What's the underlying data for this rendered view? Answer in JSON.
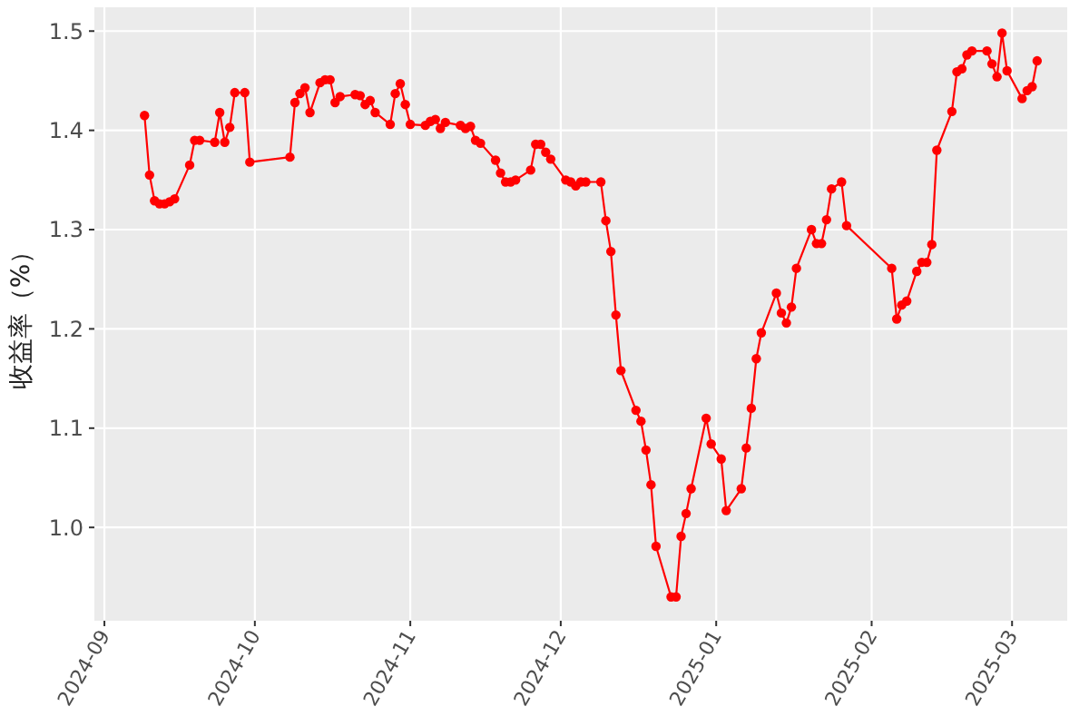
{
  "chart_data": {
    "type": "line",
    "ylabel": "收益率（%）",
    "marker": "circle",
    "line_style": "solid",
    "grid": true,
    "xlim": [
      "2024-08-30",
      "2025-03-12"
    ],
    "xticks": [
      {
        "value": "2024-09-01",
        "label": "2024-09"
      },
      {
        "value": "2024-10-01",
        "label": "2024-10"
      },
      {
        "value": "2024-11-01",
        "label": "2024-11"
      },
      {
        "value": "2024-12-01",
        "label": "2024-12"
      },
      {
        "value": "2025-01-01",
        "label": "2025-01"
      },
      {
        "value": "2025-02-01",
        "label": "2025-02"
      },
      {
        "value": "2025-03-01",
        "label": "2025-03"
      }
    ],
    "ylim": [
      0.906,
      1.524
    ],
    "yticks": [
      {
        "value": 1,
        "label": "1.0"
      },
      {
        "value": 1.1,
        "label": "1.1"
      },
      {
        "value": 1.2,
        "label": "1.2"
      },
      {
        "value": 1.3,
        "label": "1.3"
      },
      {
        "value": 1.4,
        "label": "1.4"
      },
      {
        "value": 1.5,
        "label": "1.5"
      }
    ],
    "x": [
      "2024-09-09",
      "2024-09-10",
      "2024-09-11",
      "2024-09-12",
      "2024-09-13",
      "2024-09-14",
      "2024-09-15",
      "2024-09-18",
      "2024-09-19",
      "2024-09-20",
      "2024-09-23",
      "2024-09-24",
      "2024-09-25",
      "2024-09-26",
      "2024-09-27",
      "2024-09-29",
      "2024-09-30",
      "2024-10-08",
      "2024-10-09",
      "2024-10-10",
      "2024-10-11",
      "2024-10-12",
      "2024-10-14",
      "2024-10-15",
      "2024-10-16",
      "2024-10-17",
      "2024-10-18",
      "2024-10-21",
      "2024-10-22",
      "2024-10-23",
      "2024-10-24",
      "2024-10-25",
      "2024-10-28",
      "2024-10-29",
      "2024-10-30",
      "2024-10-31",
      "2024-11-01",
      "2024-11-04",
      "2024-11-05",
      "2024-11-06",
      "2024-11-07",
      "2024-11-08",
      "2024-11-11",
      "2024-11-12",
      "2024-11-13",
      "2024-11-14",
      "2024-11-15",
      "2024-11-18",
      "2024-11-19",
      "2024-11-20",
      "2024-11-21",
      "2024-11-22",
      "2024-11-25",
      "2024-11-26",
      "2024-11-27",
      "2024-11-28",
      "2024-11-29",
      "2024-12-02",
      "2024-12-03",
      "2024-12-04",
      "2024-12-05",
      "2024-12-06",
      "2024-12-09",
      "2024-12-10",
      "2024-12-11",
      "2024-12-12",
      "2024-12-13",
      "2024-12-16",
      "2024-12-17",
      "2024-12-18",
      "2024-12-19",
      "2024-12-20",
      "2024-12-23",
      "2024-12-24",
      "2024-12-25",
      "2024-12-26",
      "2024-12-27",
      "2024-12-30",
      "2024-12-31",
      "2025-01-02",
      "2025-01-03",
      "2025-01-06",
      "2025-01-07",
      "2025-01-08",
      "2025-01-09",
      "2025-01-10",
      "2025-01-13",
      "2025-01-14",
      "2025-01-15",
      "2025-01-16",
      "2025-01-17",
      "2025-01-20",
      "2025-01-21",
      "2025-01-22",
      "2025-01-23",
      "2025-01-24",
      "2025-01-26",
      "2025-01-27",
      "2025-02-05",
      "2025-02-06",
      "2025-02-07",
      "2025-02-08",
      "2025-02-10",
      "2025-02-11",
      "2025-02-12",
      "2025-02-13",
      "2025-02-14",
      "2025-02-17",
      "2025-02-18",
      "2025-02-19",
      "2025-02-20",
      "2025-02-21",
      "2025-02-24",
      "2025-02-25",
      "2025-02-26",
      "2025-02-27",
      "2025-02-28",
      "2025-03-03",
      "2025-03-04",
      "2025-03-05",
      "2025-03-06"
    ],
    "series": [
      {
        "color": "#ff0000",
        "values": [
          1.415,
          1.355,
          1.329,
          1.326,
          1.326,
          1.328,
          1.331,
          1.365,
          1.39,
          1.39,
          1.388,
          1.418,
          1.388,
          1.403,
          1.438,
          1.438,
          1.368,
          1.373,
          1.428,
          1.437,
          1.443,
          1.418,
          1.448,
          1.451,
          1.451,
          1.428,
          1.434,
          1.436,
          1.435,
          1.426,
          1.43,
          1.418,
          1.406,
          1.437,
          1.447,
          1.426,
          1.406,
          1.405,
          1.409,
          1.411,
          1.402,
          1.408,
          1.405,
          1.402,
          1.404,
          1.39,
          1.387,
          1.37,
          1.357,
          1.348,
          1.348,
          1.35,
          1.36,
          1.386,
          1.386,
          1.378,
          1.371,
          1.35,
          1.348,
          1.344,
          1.348,
          1.348,
          1.348,
          1.309,
          1.278,
          1.214,
          1.158,
          1.118,
          1.107,
          1.078,
          1.043,
          0.981,
          0.93,
          0.93,
          0.991,
          1.014,
          1.039,
          1.11,
          1.084,
          1.069,
          1.017,
          1.039,
          1.08,
          1.12,
          1.17,
          1.196,
          1.236,
          1.216,
          1.206,
          1.222,
          1.261,
          1.3,
          1.286,
          1.286,
          1.31,
          1.341,
          1.348,
          1.304,
          1.261,
          1.21,
          1.224,
          1.228,
          1.258,
          1.267,
          1.267,
          1.285,
          1.38,
          1.419,
          1.459,
          1.462,
          1.476,
          1.48,
          1.48,
          1.467,
          1.454,
          1.498,
          1.46,
          1.432,
          1.44,
          1.444,
          1.47
        ]
      }
    ]
  }
}
